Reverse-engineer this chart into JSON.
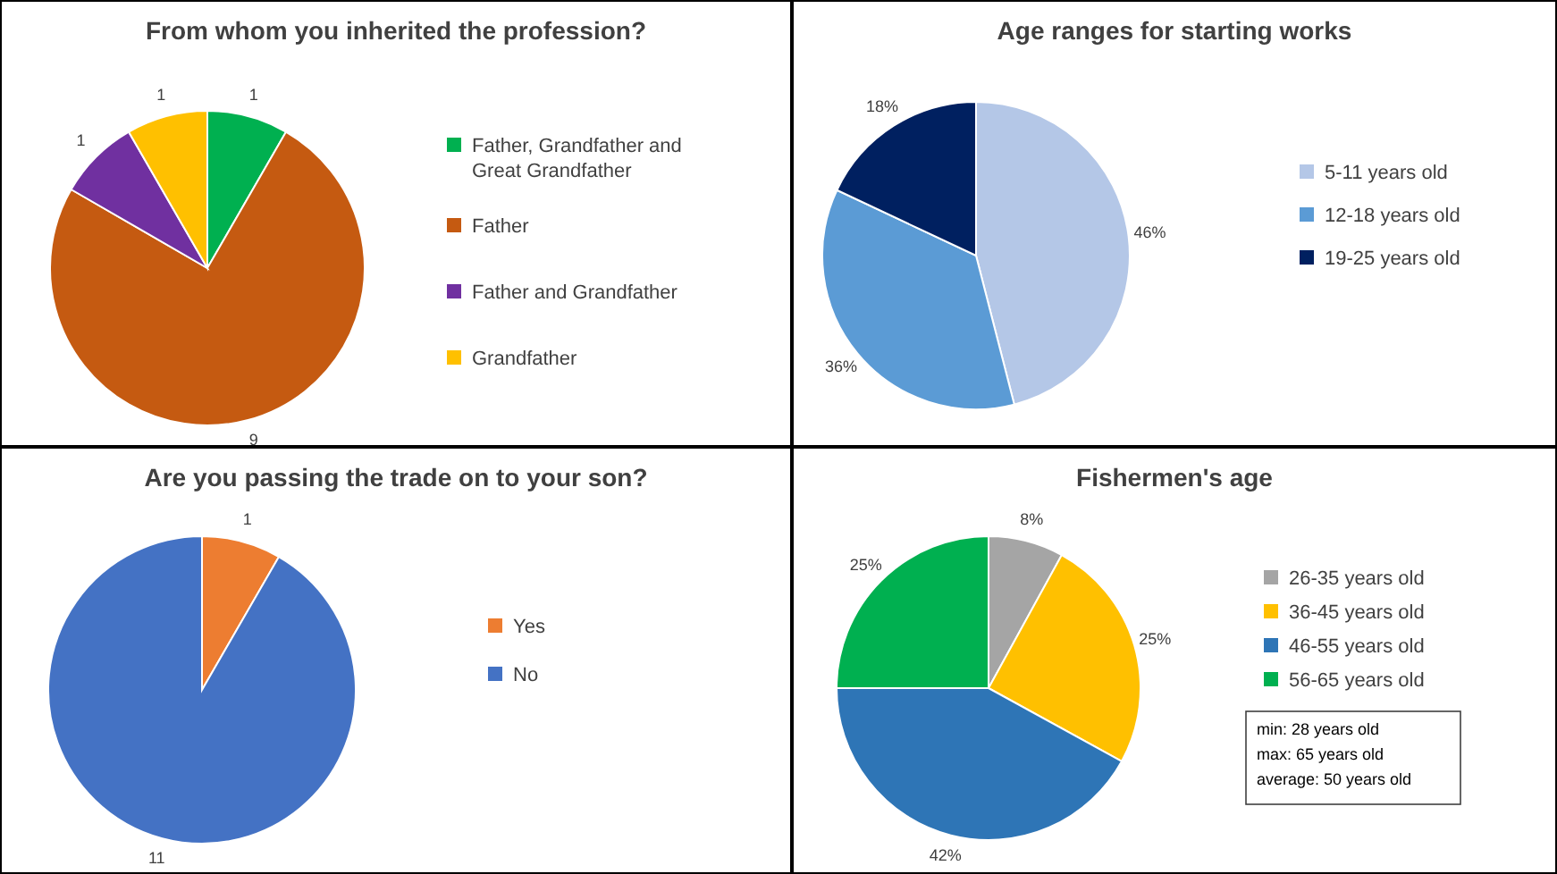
{
  "chart_data": [
    {
      "type": "pie",
      "title": "From whom you inherited the profession?",
      "categories": [
        "Father, Grandfather and Great Grandfather",
        "Father",
        "Father and Grandfather",
        "Grandfather"
      ],
      "values": [
        1,
        9,
        1,
        1
      ],
      "colors": [
        "#00b050",
        "#c55a11",
        "#7030a0",
        "#ffc000"
      ],
      "data_labels": true,
      "legend": "right"
    },
    {
      "type": "pie",
      "title": "Age ranges for starting works",
      "categories": [
        "5-11 years old",
        "12-18 years old",
        "19-25 years old"
      ],
      "values": [
        46,
        36,
        18
      ],
      "colors": [
        "#b4c7e7",
        "#5b9bd5",
        "#002060"
      ],
      "value_labels": [
        "46%",
        "36%",
        "18%"
      ],
      "legend": "right"
    },
    {
      "type": "pie",
      "title": "Are you passing the trade on to your son?",
      "categories": [
        "Yes",
        "No"
      ],
      "values": [
        1,
        11
      ],
      "colors": [
        "#ed7d31",
        "#4472c4"
      ],
      "data_labels": true,
      "legend": "right"
    },
    {
      "type": "pie",
      "title": "Fishermen's age",
      "categories": [
        "26-35 years old",
        "36-45 years old",
        "46-55 years old",
        "56-65 years old"
      ],
      "values": [
        8,
        25,
        42,
        25
      ],
      "colors": [
        "#a5a5a5",
        "#ffc000",
        "#2e75b6",
        "#00b050"
      ],
      "value_labels": [
        "8%",
        "25%",
        "42%",
        "25%"
      ],
      "legend": "right",
      "annotations": [
        "min: 28 years old",
        "max: 65 years old",
        "average: 50 years old"
      ]
    }
  ]
}
